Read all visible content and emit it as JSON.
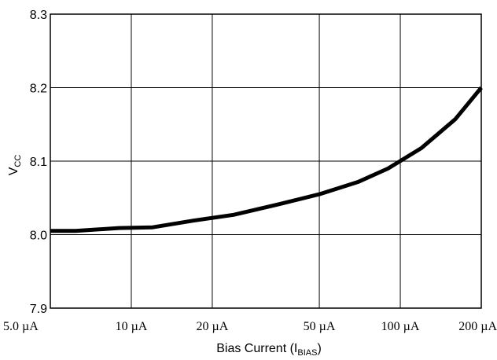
{
  "chart_data": {
    "type": "line",
    "xlabel": "Bias Current (I",
    "xlabel_sub": "BIAS",
    "xlabel_end": ")",
    "ylabel": "V",
    "ylabel_sub": "CC",
    "x_scale": "log",
    "x_ticks": [
      {
        "value": 5,
        "label": "5.0 µA"
      },
      {
        "value": 10,
        "label": "10 µA"
      },
      {
        "value": 20,
        "label": "20 µA"
      },
      {
        "value": 50,
        "label": "50 µA"
      },
      {
        "value": 100,
        "label": "100 µA"
      },
      {
        "value": 200,
        "label": "200 µA"
      }
    ],
    "y_ticks": [
      {
        "value": 7.9,
        "label": "7.9"
      },
      {
        "value": 8.0,
        "label": "8.0"
      },
      {
        "value": 8.1,
        "label": "8.1"
      },
      {
        "value": 8.2,
        "label": "8.2"
      },
      {
        "value": 8.3,
        "label": "8.3"
      }
    ],
    "xlim": [
      5,
      200
    ],
    "ylim": [
      7.9,
      8.3
    ],
    "grid": true,
    "series": [
      {
        "color": "#000000",
        "points": [
          [
            5,
            8.005
          ],
          [
            6.2,
            8.005
          ],
          [
            9.0,
            8.009
          ],
          [
            12,
            8.01
          ],
          [
            17,
            8.019
          ],
          [
            24,
            8.027
          ],
          [
            35,
            8.041
          ],
          [
            50,
            8.055
          ],
          [
            70,
            8.072
          ],
          [
            90,
            8.09
          ],
          [
            120,
            8.118
          ],
          [
            160,
            8.157
          ],
          [
            200,
            8.2
          ]
        ]
      }
    ]
  }
}
